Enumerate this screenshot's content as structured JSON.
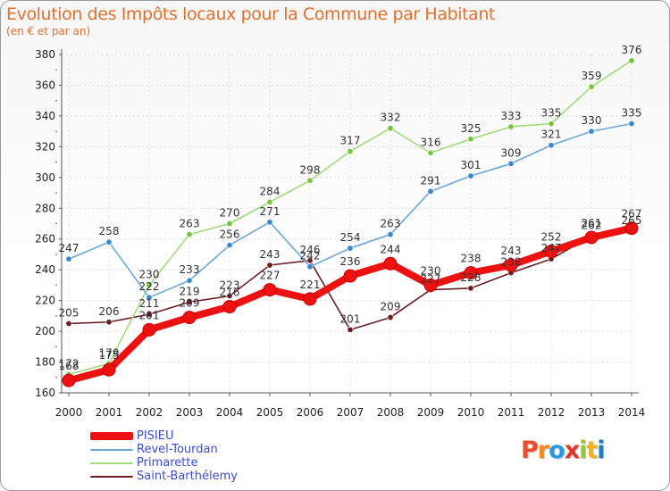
{
  "header": {
    "title": "Evolution des Impôts locaux pour la Commune par Habitant",
    "subtitle": "(en € et par an)"
  },
  "logo": {
    "text": "Proxiti",
    "letters": [
      "P",
      "r",
      "o",
      "x",
      "i",
      "t",
      "i"
    ],
    "colors": [
      "#e94e2f",
      "#f28a1f",
      "#2a9ae0",
      "#e6362a",
      "#9cc33c",
      "#f6b21b",
      "#1e7fc9"
    ]
  },
  "chart_data": {
    "type": "line",
    "title": "Evolution des Impôts locaux pour la Commune par Habitant",
    "subtitle": "(en € et par an)",
    "xlabel": "",
    "ylabel": "",
    "ylim": [
      160,
      380
    ],
    "yticks": [
      160,
      180,
      200,
      220,
      240,
      260,
      280,
      300,
      320,
      340,
      360,
      380
    ],
    "grid": true,
    "legend_position": "bottom-left",
    "categories": [
      "2000",
      "2001",
      "2002",
      "2003",
      "2004",
      "2005",
      "2006",
      "2007",
      "2008",
      "2009",
      "2010",
      "2011",
      "2012",
      "2013",
      "2014"
    ],
    "series": [
      {
        "name": "Saint-Barthélemy",
        "color": "#6b1e22",
        "marker": "#6b1e22",
        "values": [
          205,
          206,
          211,
          219,
          223,
          243,
          246,
          201,
          209,
          227,
          228,
          238,
          247,
          262,
          265
        ]
      },
      {
        "name": "Primarette",
        "color": "#9edb7a",
        "marker": "#78c43c",
        "values": [
          172,
          179,
          230,
          263,
          270,
          284,
          298,
          317,
          332,
          316,
          325,
          333,
          335,
          359,
          376
        ]
      },
      {
        "name": "Revel-Tourdan",
        "color": "#6aa7d9",
        "marker": "#3a88cc",
        "values": [
          247,
          258,
          222,
          233,
          256,
          271,
          242,
          254,
          263,
          291,
          301,
          309,
          321,
          330,
          335
        ]
      },
      {
        "name": "PISIEU",
        "color": "#ee1111",
        "marker": "#ee1111",
        "values": [
          168,
          175,
          201,
          209,
          216,
          227,
          221,
          236,
          244,
          230,
          238,
          243,
          252,
          261,
          267
        ]
      }
    ]
  }
}
